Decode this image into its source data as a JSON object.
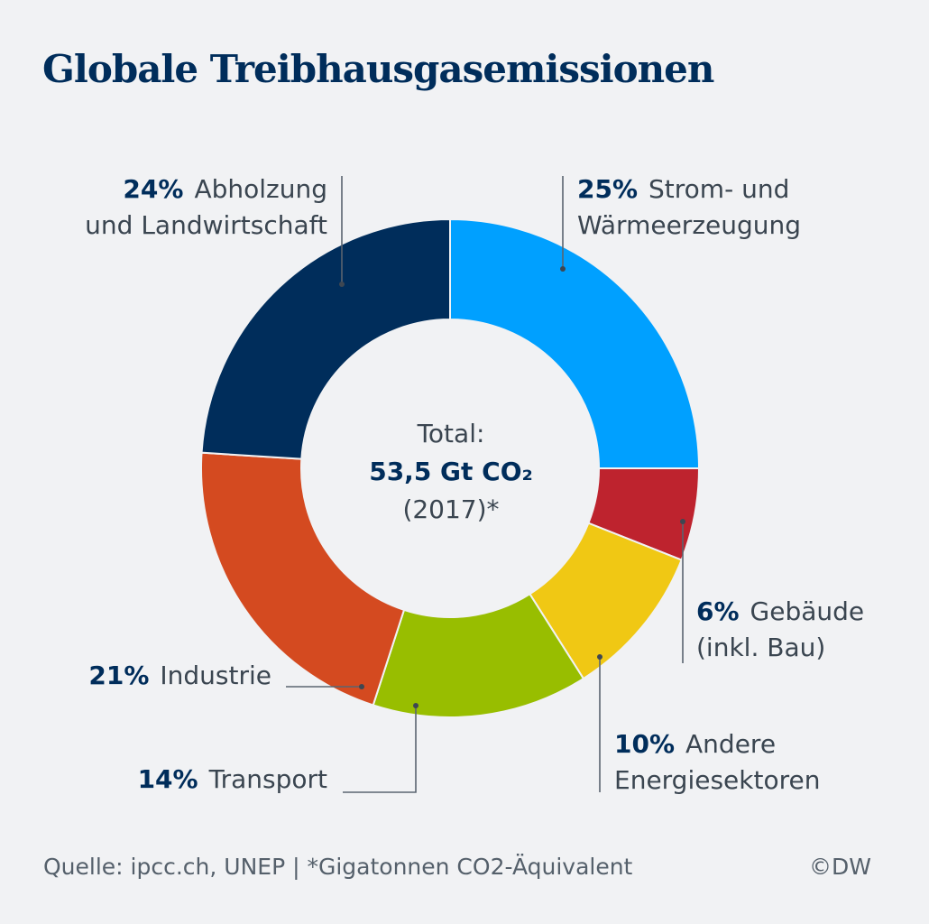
{
  "chart_data": {
    "type": "pie",
    "variant": "donut",
    "title": "Globale Treibhausgasemissionen",
    "center_text": {
      "line1": "Total:",
      "line2": "53,5 Gt CO₂",
      "line3": "(2017)*"
    },
    "slices": [
      {
        "percent": 25,
        "pct_label": "25%",
        "label_line1": "Strom- und",
        "label_line2": "Wärmeerzeugung",
        "color": "#00a0ff"
      },
      {
        "percent": 6,
        "pct_label": "6%",
        "label_line1": "Gebäude",
        "label_line2": "(inkl. Bau)",
        "color": "#be232e"
      },
      {
        "percent": 10,
        "pct_label": "10%",
        "label_line1": "Andere",
        "label_line2": "Energiesektoren",
        "color": "#f0c814"
      },
      {
        "percent": 14,
        "pct_label": "14%",
        "label_line1": "Transport",
        "label_line2": "",
        "color": "#98be00"
      },
      {
        "percent": 21,
        "pct_label": "21%",
        "label_line1": "Industrie",
        "label_line2": "",
        "color": "#d44a20"
      },
      {
        "percent": 24,
        "pct_label": "24%",
        "label_line1": "Abholzung",
        "label_line2": "und Landwirtschaft",
        "color": "#002d5b"
      }
    ],
    "legend": "none (direct labels)"
  },
  "footer": {
    "source": "Quelle: ipcc.ch, UNEP | *Gigatonnen CO2-Äquivalent",
    "copyright": "©DW"
  },
  "colors": {
    "background": "#f1f2f4",
    "title": "#002d5b",
    "text": "#3a4550",
    "leader": "#5a6470"
  }
}
